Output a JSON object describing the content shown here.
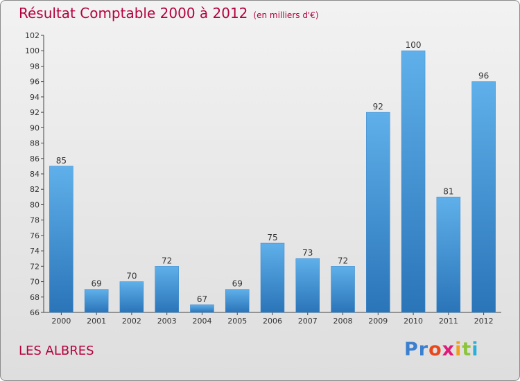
{
  "title": "Résultat Comptable 2000 à 2012",
  "subtitle": "(en milliers d'€)",
  "commune": "LES ALBRES",
  "logo": {
    "parts": [
      "Pr",
      "o",
      "x",
      "i",
      "t",
      "i"
    ]
  },
  "colors": {
    "bar": "#3d8fd6",
    "bar_light": "#5fb0ea",
    "bar_dark": "#2a74b8",
    "title": "#b5003f"
  },
  "chart_data": {
    "type": "bar",
    "categories": [
      "2000",
      "2001",
      "2002",
      "2003",
      "2004",
      "2005",
      "2006",
      "2007",
      "2008",
      "2009",
      "2010",
      "2011",
      "2012"
    ],
    "values": [
      85,
      69,
      70,
      72,
      67,
      69,
      75,
      73,
      72,
      92,
      100,
      81,
      96
    ],
    "ylim": [
      66,
      102
    ],
    "yticks": [
      66,
      68,
      70,
      72,
      74,
      76,
      78,
      80,
      82,
      84,
      86,
      88,
      90,
      92,
      94,
      96,
      98,
      100,
      102
    ],
    "grid": false,
    "legend": "none"
  }
}
